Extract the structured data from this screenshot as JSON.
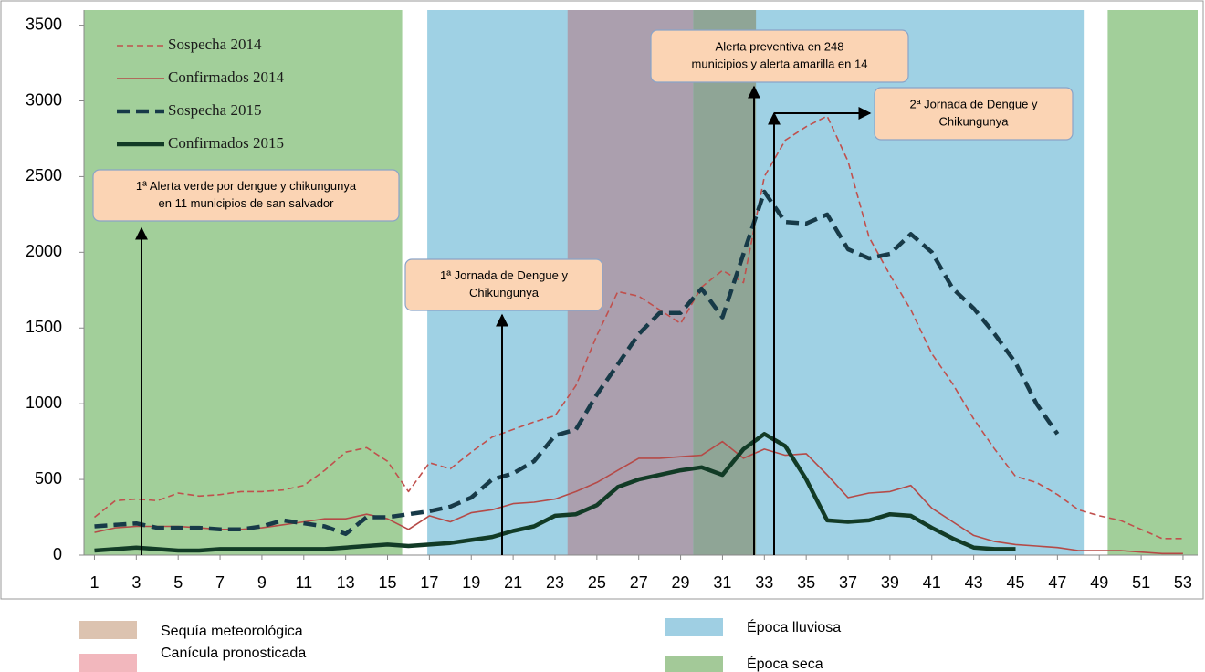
{
  "chart_data": {
    "type": "line",
    "x": [
      1,
      2,
      3,
      4,
      5,
      6,
      7,
      8,
      9,
      10,
      11,
      12,
      13,
      14,
      15,
      16,
      17,
      18,
      19,
      20,
      21,
      22,
      23,
      24,
      25,
      26,
      27,
      28,
      29,
      30,
      31,
      32,
      33,
      34,
      35,
      36,
      37,
      38,
      39,
      40,
      41,
      42,
      43,
      44,
      45,
      46,
      47,
      48,
      49,
      50,
      51,
      52,
      53
    ],
    "xlim": [
      0.5,
      53.7
    ],
    "xticks": [
      1,
      3,
      5,
      7,
      9,
      11,
      13,
      15,
      17,
      19,
      21,
      23,
      25,
      27,
      29,
      31,
      33,
      35,
      37,
      39,
      41,
      43,
      45,
      47,
      49,
      51,
      53
    ],
    "ylim": [
      0,
      3600
    ],
    "yticks": [
      0,
      500,
      1000,
      1500,
      2000,
      2500,
      3000,
      3500
    ],
    "series": [
      {
        "name": "Sospecha 2014",
        "color": "#c0504d",
        "line_style": "dashed",
        "line_width": 1.6,
        "values": [
          250,
          360,
          370,
          360,
          410,
          390,
          400,
          420,
          420,
          430,
          460,
          560,
          680,
          710,
          620,
          420,
          610,
          570,
          680,
          780,
          830,
          880,
          920,
          1120,
          1450,
          1740,
          1710,
          1620,
          1530,
          1770,
          1880,
          1800,
          2500,
          2740,
          2830,
          2900,
          2600,
          2100,
          1850,
          1620,
          1330,
          1130,
          900,
          700,
          520,
          480,
          400,
          300,
          260,
          230,
          170,
          110,
          110
        ]
      },
      {
        "name": "Confirmados 2014",
        "color": "#b54a47",
        "line_style": "solid",
        "line_width": 1.6,
        "values": [
          150,
          180,
          190,
          190,
          190,
          180,
          170,
          170,
          180,
          200,
          220,
          240,
          240,
          270,
          240,
          170,
          260,
          220,
          280,
          300,
          340,
          350,
          370,
          420,
          480,
          560,
          640,
          640,
          650,
          660,
          750,
          640,
          700,
          660,
          670,
          530,
          380,
          410,
          420,
          460,
          310,
          220,
          130,
          90,
          70,
          60,
          50,
          30,
          30,
          30,
          20,
          10,
          10
        ]
      },
      {
        "name": "Sospecha 2015",
        "color": "#173a48",
        "line_style": "dashed",
        "line_width": 4.5,
        "values": [
          190,
          200,
          210,
          180,
          180,
          180,
          170,
          170,
          190,
          230,
          210,
          190,
          140,
          250,
          250,
          270,
          290,
          320,
          380,
          500,
          540,
          620,
          790,
          830,
          1060,
          1260,
          1460,
          1600,
          1600,
          1760,
          1570,
          1990,
          2400,
          2200,
          2190,
          2250,
          2020,
          1960,
          1990,
          2120,
          2000,
          1760,
          1630,
          1460,
          1270,
          1000,
          800,
          null,
          null,
          null,
          null,
          null,
          null
        ]
      },
      {
        "name": "Confirmados 2015",
        "color": "#123b26",
        "line_style": "solid",
        "line_width": 4.5,
        "values": [
          30,
          40,
          50,
          40,
          30,
          30,
          40,
          40,
          40,
          40,
          40,
          40,
          50,
          60,
          70,
          60,
          70,
          80,
          100,
          120,
          160,
          190,
          260,
          270,
          330,
          450,
          500,
          530,
          560,
          580,
          530,
          700,
          800,
          720,
          500,
          230,
          220,
          230,
          270,
          260,
          180,
          110,
          50,
          40,
          40,
          null,
          null,
          null,
          null,
          null,
          null,
          null,
          null
        ]
      }
    ],
    "legend_areas": [
      {
        "name": "Sequía meteorológica",
        "color": "#dcc3b0",
        "spans": [
          {
            "from": 29.6,
            "to": 32.6,
            "color": "#8fa596"
          }
        ]
      },
      {
        "name": "Canícula pronosticada",
        "color": "#f2b7bd",
        "spans": [
          {
            "from": 23.6,
            "to": 29.6,
            "color": "#ab9fae"
          }
        ]
      },
      {
        "name": "Época lluviosa",
        "color": "#9fcfe3",
        "spans": [
          {
            "from": 16.9,
            "to": 48.3,
            "color": "#9fd1e4"
          }
        ]
      },
      {
        "name": "Época seca",
        "color": "#a3c998",
        "spans": [
          {
            "from": 0.5,
            "to": 15.7,
            "color": "#a2cf9a"
          },
          {
            "from": 49.4,
            "to": 53.7,
            "color": "#a2cf9a"
          }
        ]
      }
    ],
    "annotations": [
      {
        "lines": [
          "1ª Alerta verde por dengue y chikungunya",
          "en 11 municipios de san salvador"
        ]
      },
      {
        "lines": [
          "1ª Jornada de Dengue y",
          "Chikungunya"
        ]
      },
      {
        "lines": [
          "Alerta preventiva en 248",
          "municipios y alerta amarilla en 14"
        ]
      },
      {
        "lines": [
          "2ª Jornada de Dengue y",
          "Chikungunya"
        ]
      }
    ]
  }
}
